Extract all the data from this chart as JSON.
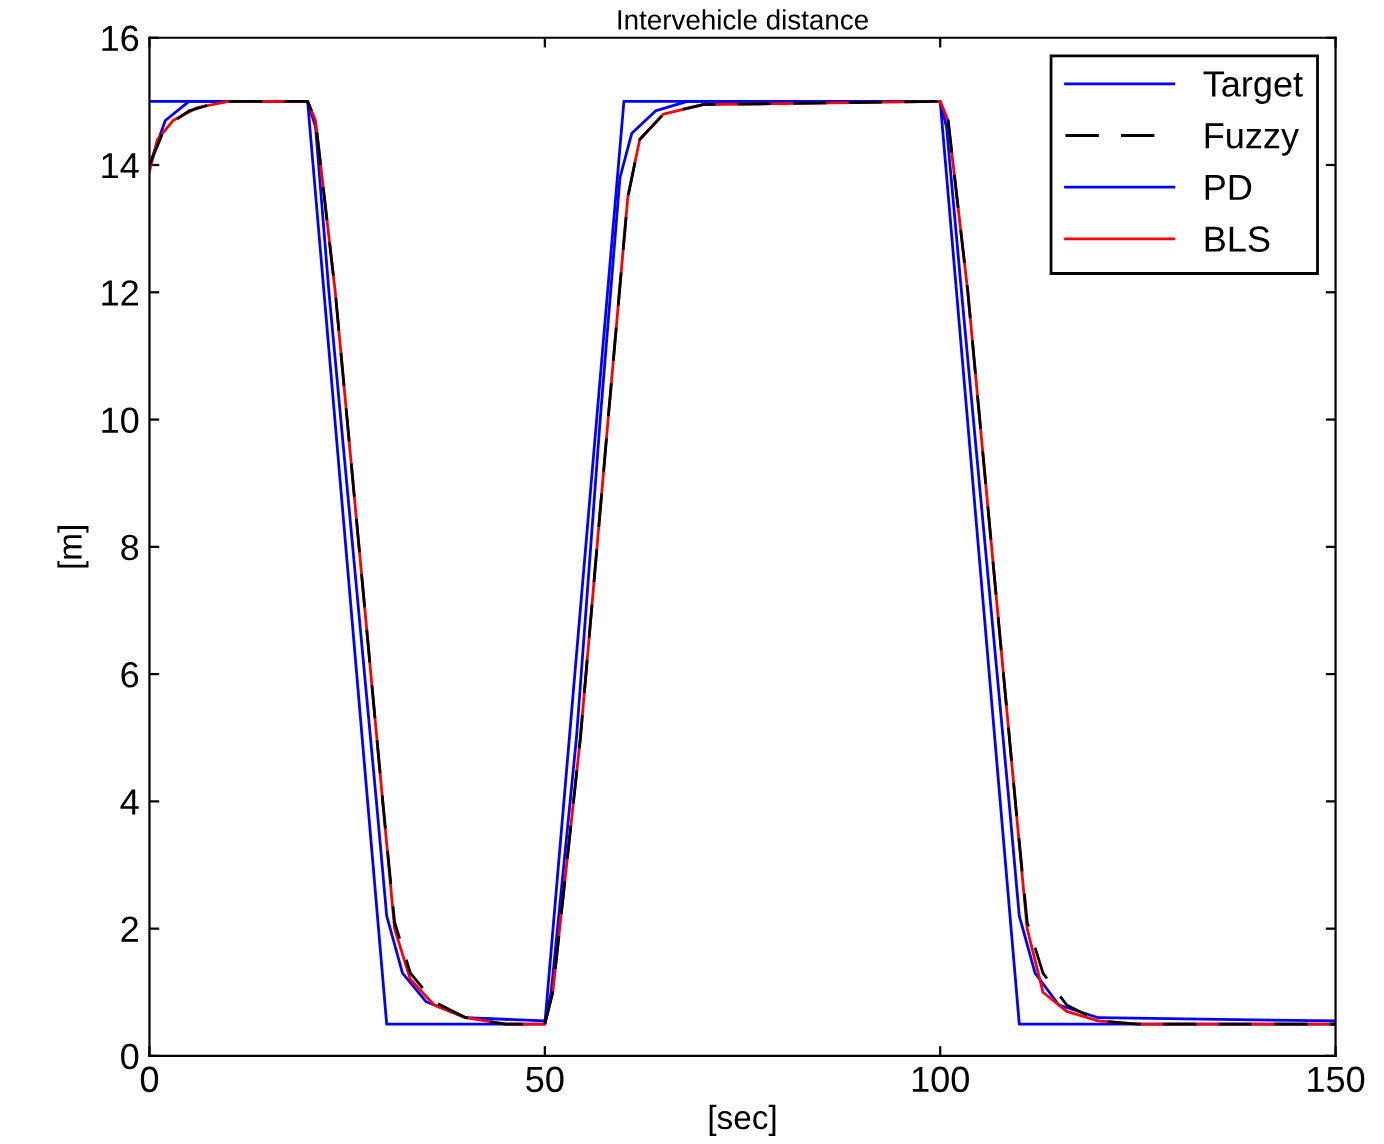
{
  "chart_data": {
    "type": "line",
    "title": "Intervehicle distance",
    "xlabel": "[sec]",
    "ylabel": "[m]",
    "xlim": [
      0,
      150
    ],
    "xticks": [
      0,
      50,
      100,
      150
    ],
    "ylim": [
      0,
      16
    ],
    "yticks": [
      0,
      2,
      4,
      6,
      8,
      10,
      12,
      14,
      16
    ],
    "grid": false,
    "legend": "top right",
    "marker": "none",
    "series": [
      {
        "name": "Target",
        "color": "#0000ff",
        "line_style": "solid",
        "x": [
          0,
          20,
          30,
          50,
          60,
          100,
          110,
          150
        ],
        "values": [
          15,
          15,
          0.5,
          0.5,
          15,
          15,
          0.5,
          0.5
        ]
      },
      {
        "name": "Fuzzy",
        "color": "#000000",
        "line_style": "dashed",
        "x": [
          0,
          2,
          5,
          9,
          20,
          21,
          23.5,
          26.5,
          29.5,
          31,
          33,
          36,
          40,
          45,
          50,
          51,
          54.5,
          58,
          60.5,
          62,
          65,
          70,
          100,
          101,
          103.5,
          106.5,
          109.5,
          111,
          113,
          116,
          120,
          125,
          150
        ],
        "values": [
          14.0,
          14.6,
          14.85,
          15,
          15,
          14.7,
          12,
          8,
          4,
          2.1,
          1.3,
          0.85,
          0.6,
          0.5,
          0.5,
          1.0,
          5,
          10,
          13.5,
          14.4,
          14.8,
          14.95,
          15,
          14.7,
          12,
          8,
          4,
          2.1,
          1.3,
          0.8,
          0.55,
          0.5,
          0.5
        ]
      },
      {
        "name": "PD",
        "color": "#0000ff",
        "line_style": "solid",
        "x": [
          0,
          2,
          5,
          20,
          21,
          22.7,
          25.7,
          28.7,
          30,
          32,
          35,
          40,
          50,
          50.8,
          54,
          57,
          59.5,
          61,
          64,
          68,
          100,
          100.8,
          102.7,
          105.7,
          108.7,
          110,
          112,
          115,
          120,
          150
        ],
        "values": [
          14.0,
          14.7,
          15,
          15,
          14.6,
          12,
          8,
          4,
          2.2,
          1.3,
          0.85,
          0.6,
          0.55,
          1.0,
          5,
          10,
          13.8,
          14.5,
          14.85,
          15,
          15,
          14.6,
          12,
          8,
          4,
          2.2,
          1.3,
          0.8,
          0.6,
          0.55
        ]
      },
      {
        "name": "BLS",
        "color": "#ff0000",
        "line_style": "solid",
        "x": [
          0,
          1,
          3,
          6,
          10,
          20,
          21,
          23.5,
          26.5,
          29.5,
          31,
          33,
          36,
          40,
          45,
          50,
          51,
          54.5,
          58,
          60.5,
          62,
          65,
          70,
          100,
          101,
          103.5,
          106.5,
          109.5,
          111,
          113,
          116,
          120,
          125,
          150
        ],
        "values": [
          13.9,
          14.4,
          14.7,
          14.9,
          15,
          15,
          14.7,
          12,
          8,
          4,
          2,
          1.2,
          0.8,
          0.6,
          0.5,
          0.5,
          1.0,
          5,
          10,
          13.5,
          14.4,
          14.8,
          14.95,
          15,
          14.7,
          12,
          8,
          4,
          2,
          1.0,
          0.7,
          0.55,
          0.5,
          0.5
        ]
      }
    ]
  }
}
